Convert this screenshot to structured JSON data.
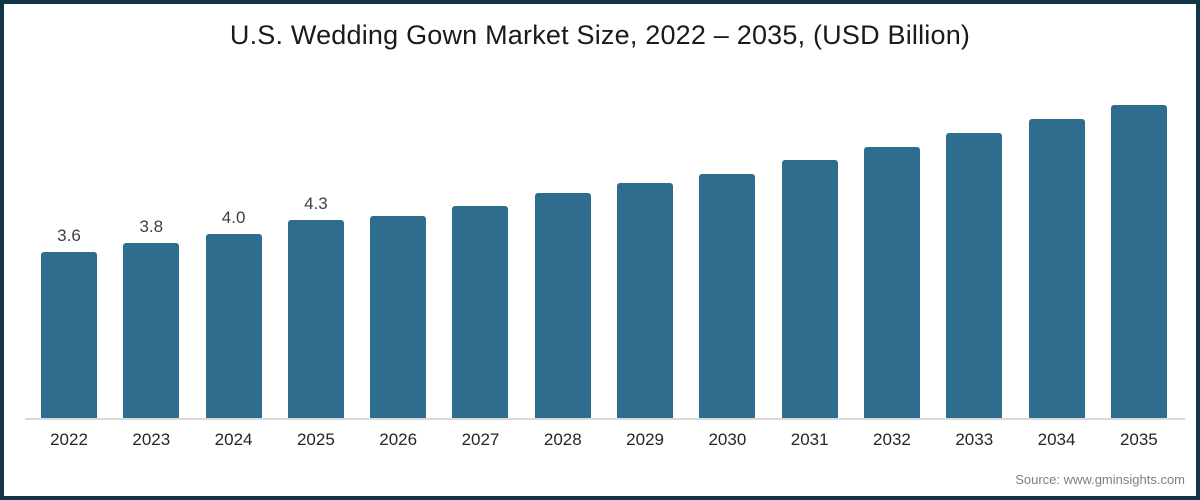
{
  "title": "U.S. Wedding Gown Market Size, 2022 – 2035, (USD Billion)",
  "source": "Source: www.gminsights.com",
  "colors": {
    "bar": "#2e6d8e",
    "frame_border": "#123647",
    "axis_line": "#d9d9d9",
    "title_text": "#1a1a1a",
    "tick_text": "#262626",
    "bar_label_text": "#404040",
    "source_text": "#7f7f7f",
    "background": "#ffffff"
  },
  "chart_data": {
    "type": "bar",
    "title": "U.S. Wedding Gown Market Size, 2022 – 2035, (USD Billion)",
    "categories": [
      "2022",
      "2023",
      "2024",
      "2025",
      "2026",
      "2027",
      "2028",
      "2029",
      "2030",
      "2031",
      "2032",
      "2033",
      "2034",
      "2035"
    ],
    "values": [
      3.6,
      3.8,
      4.0,
      4.3,
      4.4,
      4.6,
      4.9,
      5.1,
      5.3,
      5.6,
      5.9,
      6.2,
      6.5,
      6.8
    ],
    "bar_labels": [
      "3.6",
      "3.8",
      "4.0",
      "4.3",
      "",
      "",
      "",
      "",
      "",
      "",
      "",
      "",
      "",
      ""
    ],
    "xlabel": "",
    "ylabel": "",
    "ylim": [
      0,
      7.5
    ],
    "grid": false,
    "legend": false,
    "notes": "Only 2022-2025 bars carry data labels; values for 2026-2035 estimated from bar heights"
  }
}
